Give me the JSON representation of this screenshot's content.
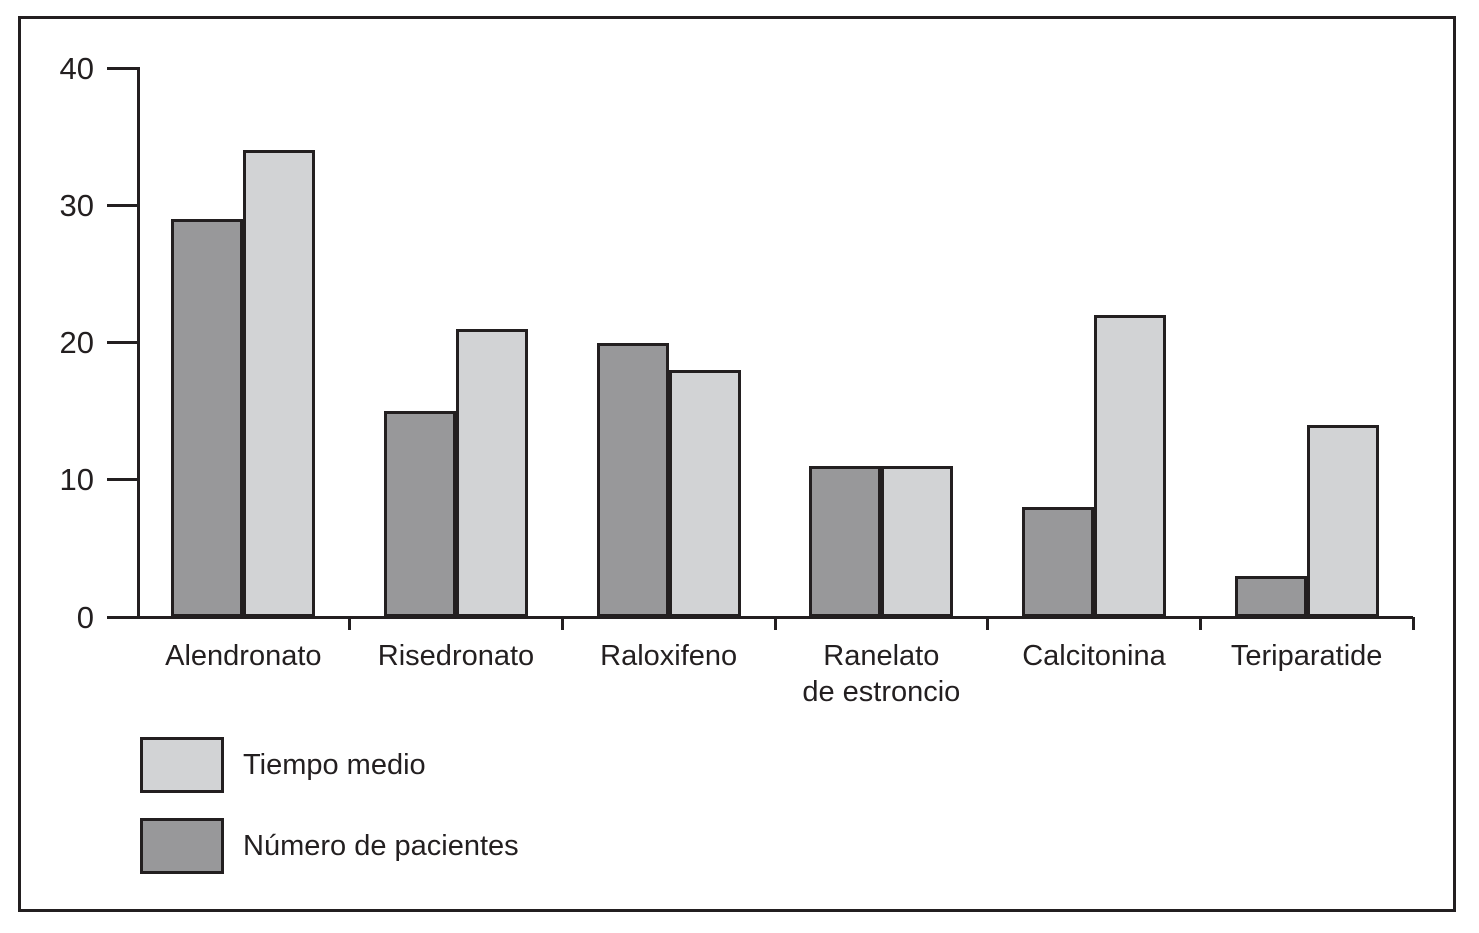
{
  "figure": {
    "background": "#ffffff",
    "border_color": "#231f20"
  },
  "chart_data": {
    "type": "bar",
    "categories": [
      "Alendronato",
      "Risedronato",
      "Raloxifeno",
      "Ranelato\nde estroncio",
      "Calcitonina",
      "Teriparatide"
    ],
    "series": [
      {
        "name": "Tiempo medio",
        "color": "#d2d3d5",
        "values": [
          34,
          21,
          18,
          11,
          22,
          14
        ]
      },
      {
        "name": "Número de pacientes",
        "color": "#98989a",
        "values": [
          29,
          15,
          20,
          11,
          8,
          3
        ]
      }
    ],
    "bar_order_left_to_right": [
      "Número de pacientes",
      "Tiempo medio"
    ],
    "title": "",
    "xlabel": "",
    "ylabel": "",
    "ylim": [
      0,
      40
    ],
    "yticks": [
      0,
      10,
      20,
      30,
      40
    ],
    "grid": false,
    "legend_position": "bottom-left",
    "bar_outline_color": "#231f20",
    "axis_color": "#231f20"
  }
}
